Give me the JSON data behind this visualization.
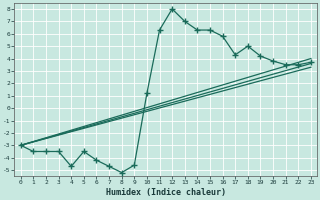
{
  "title": "",
  "xlabel": "Humidex (Indice chaleur)",
  "bg_color": "#c8e8e0",
  "grid_color": "#ffffff",
  "line_color": "#1a6b5a",
  "xlim": [
    -0.5,
    23.5
  ],
  "ylim": [
    -5.5,
    8.5
  ],
  "xticks": [
    0,
    1,
    2,
    3,
    4,
    5,
    6,
    7,
    8,
    9,
    10,
    11,
    12,
    13,
    14,
    15,
    16,
    17,
    18,
    19,
    20,
    21,
    22,
    23
  ],
  "yticks": [
    -5,
    -4,
    -3,
    -2,
    -1,
    0,
    1,
    2,
    3,
    4,
    5,
    6,
    7,
    8
  ],
  "line1_x": [
    0,
    1,
    2,
    3,
    4,
    5,
    6,
    7,
    8,
    9,
    10,
    11,
    12,
    13,
    14,
    15,
    16,
    17,
    18,
    19,
    20,
    21,
    22,
    23
  ],
  "line1_y": [
    -3.0,
    -3.5,
    -3.5,
    -3.5,
    -4.7,
    -3.5,
    -4.2,
    -4.7,
    -5.2,
    -4.6,
    1.2,
    6.3,
    8.0,
    7.0,
    6.3,
    6.3,
    5.8,
    4.3,
    5.0,
    4.2,
    3.8,
    3.5,
    3.5,
    3.7
  ],
  "straight_lines": [
    {
      "x": [
        0,
        23
      ],
      "y": [
        -3.0,
        3.3
      ]
    },
    {
      "x": [
        0,
        23
      ],
      "y": [
        -3.0,
        3.6
      ]
    },
    {
      "x": [
        0,
        23
      ],
      "y": [
        -3.0,
        4.0
      ]
    }
  ]
}
